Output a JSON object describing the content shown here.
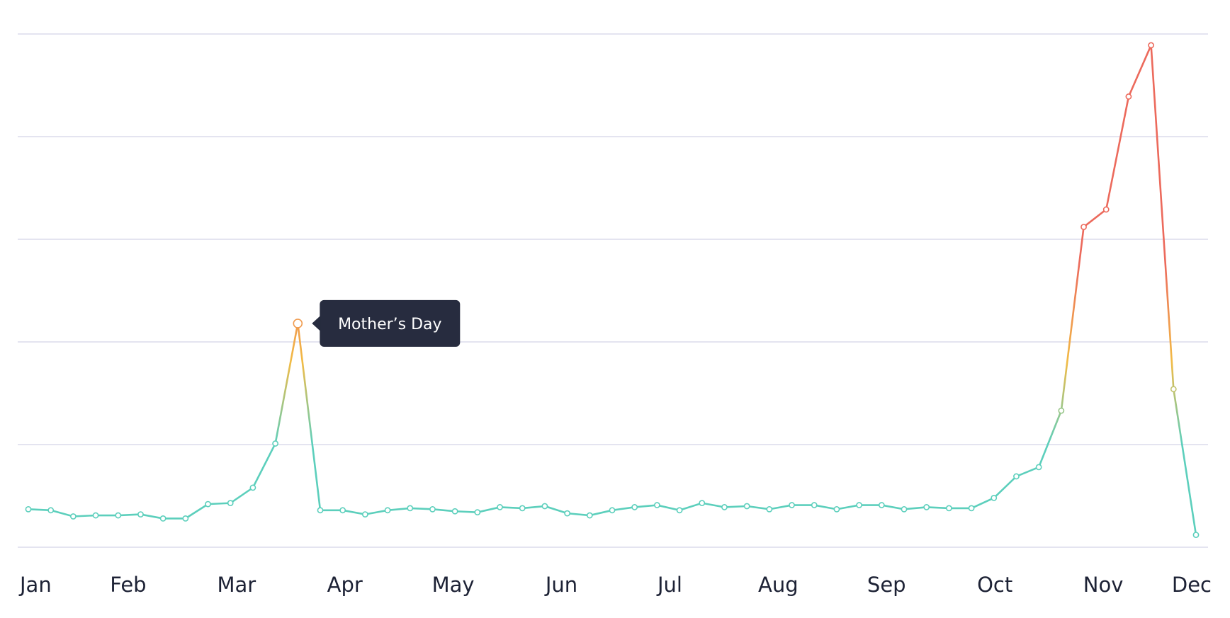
{
  "chart_data": {
    "type": "line",
    "title": "",
    "xlabel": "",
    "ylabel": "",
    "x_tick_labels": [
      "Jan",
      "Feb",
      "Mar",
      "Apr",
      "May",
      "Jun",
      "Jul",
      "Aug",
      "Sep",
      "Oct",
      "Nov",
      "Dec"
    ],
    "y_tick_labels": [],
    "gridlines": 6,
    "ylim": [
      0,
      5
    ],
    "grid": true,
    "legend": "none",
    "series": [
      {
        "values": [
          0.37,
          0.36,
          0.3,
          0.31,
          0.31,
          0.32,
          0.28,
          0.28,
          0.42,
          0.43,
          0.58,
          1.01,
          2.18,
          0.36,
          0.36,
          0.32,
          0.36,
          0.38,
          0.37,
          0.35,
          0.34,
          0.39,
          0.38,
          0.4,
          0.33,
          0.31,
          0.36,
          0.39,
          0.41,
          0.36,
          0.43,
          0.39,
          0.4,
          0.37,
          0.41,
          0.41,
          0.37,
          0.41,
          0.41,
          0.37,
          0.39,
          0.38,
          0.38,
          0.48,
          0.69,
          0.78,
          1.33,
          3.12,
          3.29,
          4.39,
          4.89,
          1.54,
          0.12
        ]
      }
    ],
    "annotations": [
      {
        "label": "Mother’s Day",
        "point_index": 12
      }
    ],
    "colors": {
      "low": "#5ccfbc",
      "mid": "#f2bb45",
      "high": "#ec6a5c",
      "grid": "#dcdcec",
      "tooltip_bg": "#272c3f",
      "tick_text": "#1d2235"
    }
  }
}
